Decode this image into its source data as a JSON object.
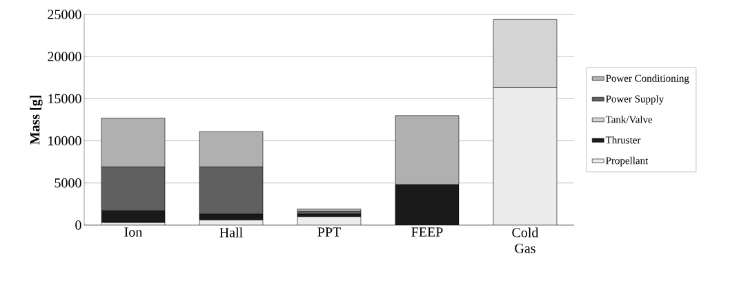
{
  "chart_data": {
    "type": "bar",
    "stacked": true,
    "ylabel": "Mass [g]",
    "categories": [
      "Ion",
      "Hall",
      "PPT",
      "FEEP",
      "Cold Gas"
    ],
    "series": [
      {
        "name": "Propellant",
        "color": "#ececec",
        "values": [
          300,
          600,
          1000,
          0,
          16300
        ]
      },
      {
        "name": "Thruster",
        "color": "#1a1a1a",
        "values": [
          1400,
          700,
          300,
          4800,
          0
        ]
      },
      {
        "name": "Tank/Valve",
        "color": "#d4d4d4",
        "values": [
          0,
          0,
          0,
          0,
          8100
        ]
      },
      {
        "name": "Power Supply",
        "color": "#606060",
        "values": [
          5200,
          5600,
          300,
          0,
          0
        ]
      },
      {
        "name": "Power Conditioning",
        "color": "#b0b0b0",
        "values": [
          5800,
          4200,
          300,
          8200,
          0
        ]
      }
    ],
    "ylim": [
      0,
      25000
    ],
    "yticks": [
      0,
      5000,
      10000,
      15000,
      20000,
      25000
    ],
    "grid": "y",
    "legend": "right"
  }
}
